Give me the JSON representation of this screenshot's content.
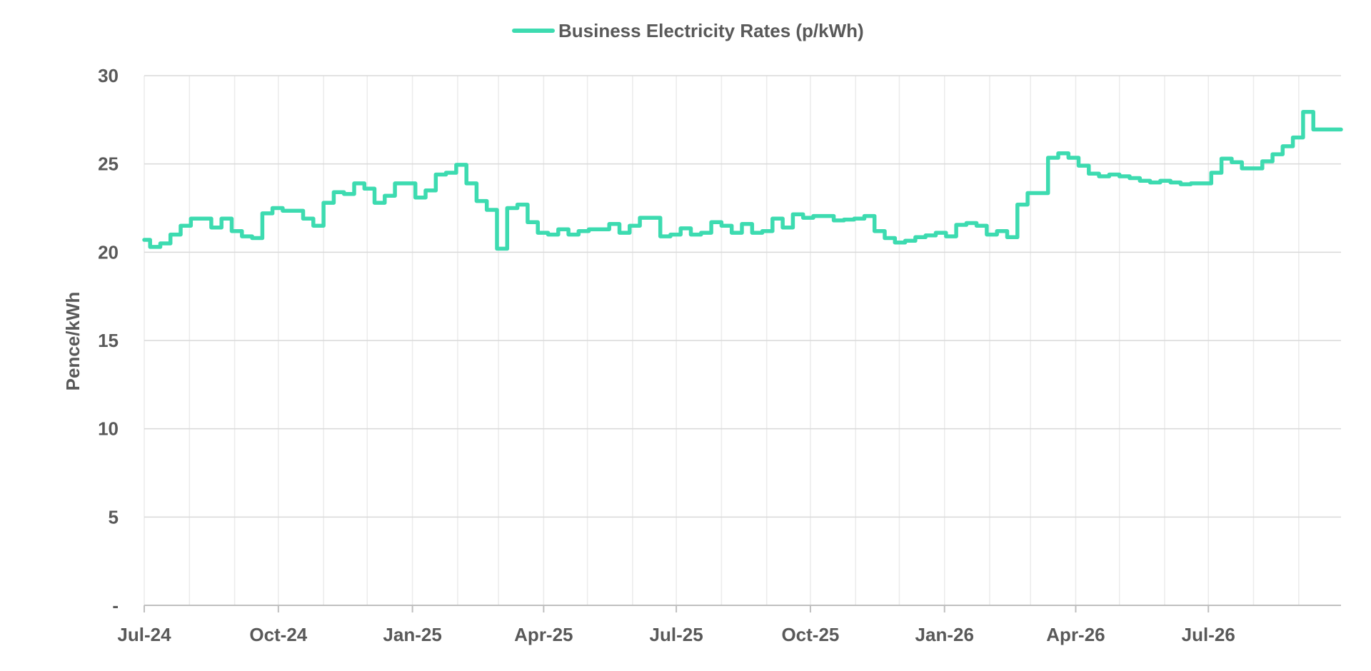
{
  "chart_data": {
    "type": "line",
    "ylabel": "Pence/kWh",
    "ylim": [
      0,
      30
    ],
    "yticks": [
      {
        "value": 0,
        "label": "-"
      },
      {
        "value": 5,
        "label": "5"
      },
      {
        "value": 10,
        "label": "10"
      },
      {
        "value": 15,
        "label": "15"
      },
      {
        "value": 20,
        "label": "20"
      },
      {
        "value": 25,
        "label": "25"
      },
      {
        "value": 30,
        "label": "30"
      }
    ],
    "xlim": [
      "2024-07-01",
      "2026-09-30"
    ],
    "xticks": [
      {
        "date": "2024-07-01",
        "label": "Jul-24"
      },
      {
        "date": "2024-10-01",
        "label": "Oct-24"
      },
      {
        "date": "2025-01-01",
        "label": "Jan-25"
      },
      {
        "date": "2025-04-01",
        "label": "Apr-25"
      },
      {
        "date": "2025-07-01",
        "label": "Jul-25"
      },
      {
        "date": "2025-10-01",
        "label": "Oct-25"
      },
      {
        "date": "2026-01-01",
        "label": "Jan-26"
      },
      {
        "date": "2026-04-01",
        "label": "Apr-26"
      },
      {
        "date": "2026-07-01",
        "label": "Jul-26"
      }
    ],
    "grid": true,
    "legend_position": "top-center",
    "series": [
      {
        "name": "Business Electricity Rates (p/kWh)",
        "color": "#3ddbb0",
        "style": "step",
        "points": [
          [
            "2024-07-01",
            20.7
          ],
          [
            "2024-07-05",
            20.3
          ],
          [
            "2024-07-12",
            20.5
          ],
          [
            "2024-07-19",
            21.0
          ],
          [
            "2024-07-26",
            21.5
          ],
          [
            "2024-08-02",
            21.9
          ],
          [
            "2024-08-16",
            21.4
          ],
          [
            "2024-08-23",
            21.9
          ],
          [
            "2024-08-30",
            21.2
          ],
          [
            "2024-09-06",
            20.9
          ],
          [
            "2024-09-13",
            20.8
          ],
          [
            "2024-09-20",
            22.2
          ],
          [
            "2024-09-27",
            22.5
          ],
          [
            "2024-10-04",
            22.35
          ],
          [
            "2024-10-18",
            21.9
          ],
          [
            "2024-10-25",
            21.5
          ],
          [
            "2024-11-01",
            22.8
          ],
          [
            "2024-11-08",
            23.4
          ],
          [
            "2024-11-15",
            23.3
          ],
          [
            "2024-11-22",
            23.9
          ],
          [
            "2024-11-29",
            23.6
          ],
          [
            "2024-12-06",
            22.8
          ],
          [
            "2024-12-13",
            23.2
          ],
          [
            "2024-12-20",
            23.9
          ],
          [
            "2025-01-03",
            23.1
          ],
          [
            "2025-01-10",
            23.5
          ],
          [
            "2025-01-17",
            24.4
          ],
          [
            "2025-01-24",
            24.5
          ],
          [
            "2025-01-31",
            24.95
          ],
          [
            "2025-02-07",
            23.9
          ],
          [
            "2025-02-14",
            22.9
          ],
          [
            "2025-02-21",
            22.4
          ],
          [
            "2025-02-28",
            20.2
          ],
          [
            "2025-03-07",
            22.5
          ],
          [
            "2025-03-14",
            22.7
          ],
          [
            "2025-03-21",
            21.7
          ],
          [
            "2025-03-28",
            21.1
          ],
          [
            "2025-04-04",
            21.0
          ],
          [
            "2025-04-11",
            21.3
          ],
          [
            "2025-04-18",
            21.0
          ],
          [
            "2025-04-25",
            21.2
          ],
          [
            "2025-05-02",
            21.3
          ],
          [
            "2025-05-16",
            21.6
          ],
          [
            "2025-05-23",
            21.1
          ],
          [
            "2025-05-30",
            21.5
          ],
          [
            "2025-06-06",
            21.95
          ],
          [
            "2025-06-20",
            20.9
          ],
          [
            "2025-06-27",
            21.0
          ],
          [
            "2025-07-04",
            21.35
          ],
          [
            "2025-07-11",
            21.0
          ],
          [
            "2025-07-18",
            21.1
          ],
          [
            "2025-07-25",
            21.7
          ],
          [
            "2025-08-01",
            21.5
          ],
          [
            "2025-08-08",
            21.1
          ],
          [
            "2025-08-15",
            21.6
          ],
          [
            "2025-08-22",
            21.1
          ],
          [
            "2025-08-29",
            21.2
          ],
          [
            "2025-09-05",
            21.9
          ],
          [
            "2025-09-12",
            21.4
          ],
          [
            "2025-09-19",
            22.15
          ],
          [
            "2025-09-26",
            21.95
          ],
          [
            "2025-10-03",
            22.05
          ],
          [
            "2025-10-17",
            21.8
          ],
          [
            "2025-10-24",
            21.85
          ],
          [
            "2025-10-31",
            21.9
          ],
          [
            "2025-11-07",
            22.05
          ],
          [
            "2025-11-14",
            21.2
          ],
          [
            "2025-11-21",
            20.8
          ],
          [
            "2025-11-28",
            20.55
          ],
          [
            "2025-12-05",
            20.65
          ],
          [
            "2025-12-12",
            20.85
          ],
          [
            "2025-12-19",
            20.95
          ],
          [
            "2025-12-26",
            21.1
          ],
          [
            "2026-01-02",
            20.9
          ],
          [
            "2026-01-09",
            21.55
          ],
          [
            "2026-01-16",
            21.65
          ],
          [
            "2026-01-23",
            21.5
          ],
          [
            "2026-01-30",
            21.0
          ],
          [
            "2026-02-06",
            21.2
          ],
          [
            "2026-02-13",
            20.85
          ],
          [
            "2026-02-20",
            22.7
          ],
          [
            "2026-02-27",
            23.35
          ],
          [
            "2026-03-13",
            25.35
          ],
          [
            "2026-03-20",
            25.6
          ],
          [
            "2026-03-27",
            25.35
          ],
          [
            "2026-04-03",
            24.9
          ],
          [
            "2026-04-10",
            24.45
          ],
          [
            "2026-04-17",
            24.3
          ],
          [
            "2026-04-24",
            24.4
          ],
          [
            "2026-05-01",
            24.3
          ],
          [
            "2026-05-08",
            24.2
          ],
          [
            "2026-05-15",
            24.05
          ],
          [
            "2026-05-22",
            23.95
          ],
          [
            "2026-05-29",
            24.05
          ],
          [
            "2026-06-05",
            23.95
          ],
          [
            "2026-06-12",
            23.85
          ],
          [
            "2026-06-19",
            23.9
          ],
          [
            "2026-07-03",
            24.5
          ],
          [
            "2026-07-10",
            25.3
          ],
          [
            "2026-07-17",
            25.1
          ],
          [
            "2026-07-24",
            24.75
          ],
          [
            "2026-08-07",
            25.15
          ],
          [
            "2026-08-14",
            25.55
          ],
          [
            "2026-08-21",
            26.0
          ],
          [
            "2026-08-28",
            26.5
          ],
          [
            "2026-09-04",
            27.95
          ],
          [
            "2026-09-11",
            26.95
          ],
          [
            "2026-09-30",
            26.95
          ]
        ]
      }
    ]
  }
}
